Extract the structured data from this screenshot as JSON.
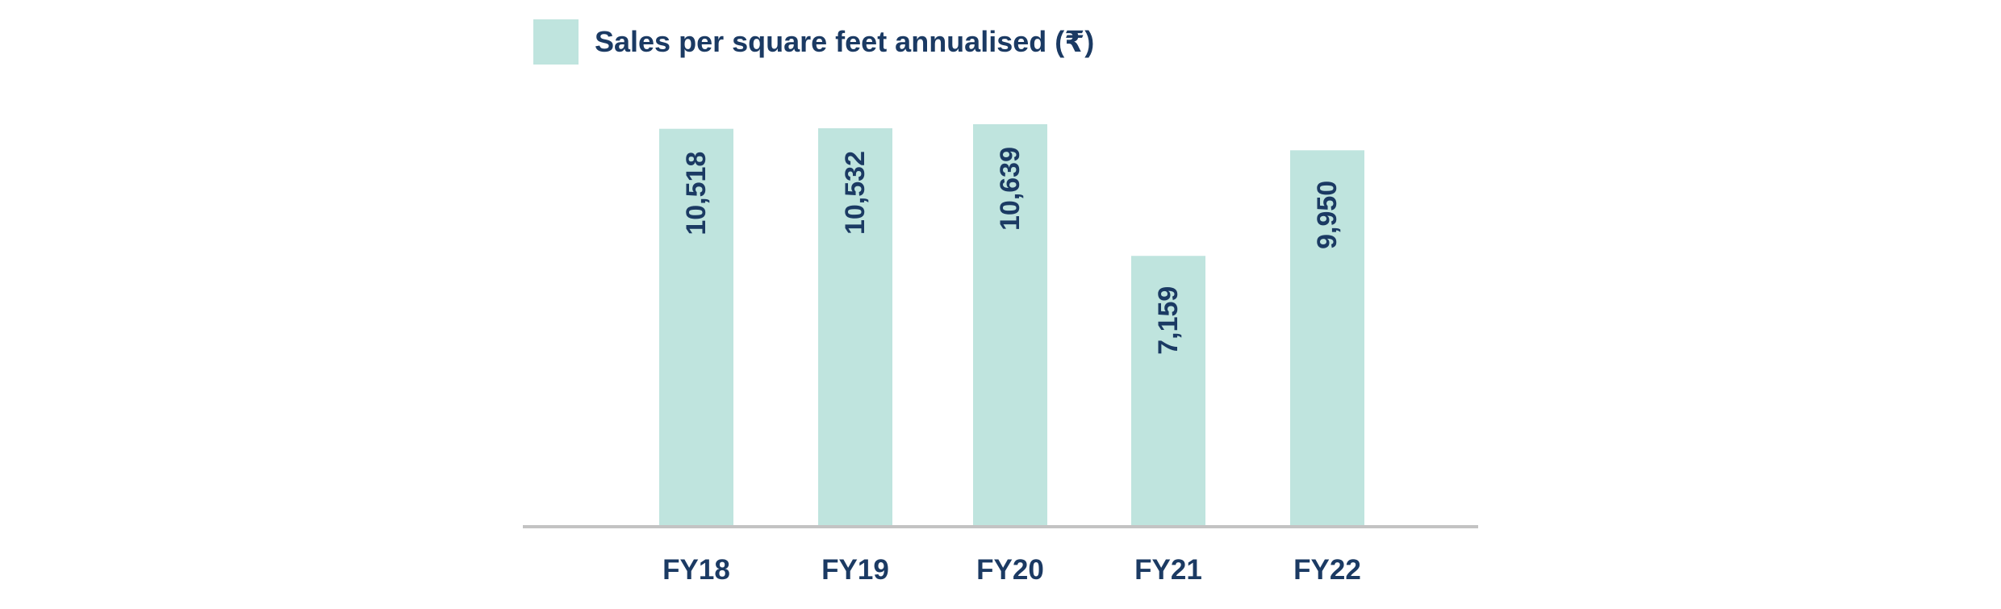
{
  "colors": {
    "bar": "#bfe4de",
    "text": "#1b3a63",
    "axis": "#c3c3c3",
    "background": "#ffffff"
  },
  "chart_data": {
    "type": "bar",
    "categories": [
      "FY18",
      "FY19",
      "FY20",
      "FY21",
      "FY22"
    ],
    "series": [
      {
        "name": "Sales per square feet annualised (₹)",
        "values": [
          10518,
          10532,
          10639,
          7159,
          9950
        ],
        "labels": [
          "10,518",
          "10,532",
          "10,639",
          "7,159",
          "9,950"
        ]
      }
    ],
    "title": "",
    "xlabel": "",
    "ylabel": "",
    "ylim": [
      0,
      10639
    ],
    "grid": false,
    "legend": "top-left",
    "data_labels": "inside-rotated"
  }
}
